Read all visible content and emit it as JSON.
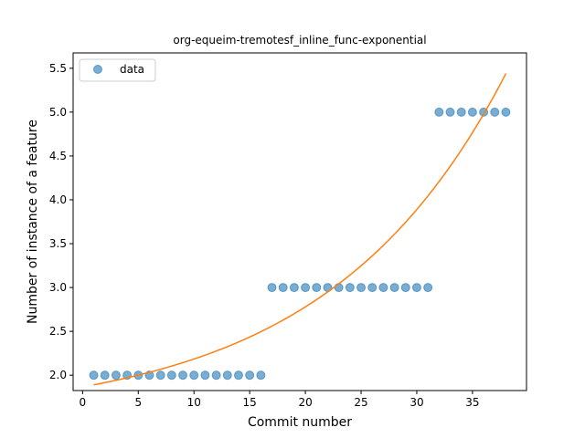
{
  "chart_data": {
    "type": "scatter",
    "title": "org-equeim-tremotesf_inline_func-exponential",
    "xlabel": "Commit number",
    "ylabel": "Number of instance of a feature",
    "xlim": [
      -0.85,
      39.85
    ],
    "ylim": [
      1.825,
      5.675
    ],
    "xticks": [
      0,
      5,
      10,
      15,
      20,
      25,
      30,
      35
    ],
    "yticks": [
      2.0,
      2.5,
      3.0,
      3.5,
      4.0,
      4.5,
      5.0,
      5.5
    ],
    "xtick_labels": [
      "0",
      "5",
      "10",
      "15",
      "20",
      "25",
      "30",
      "35"
    ],
    "ytick_labels": [
      "2.0",
      "2.5",
      "3.0",
      "3.5",
      "4.0",
      "4.5",
      "5.0",
      "5.5"
    ],
    "legend": {
      "position": "upper-left",
      "entries": [
        "data"
      ]
    },
    "grid": false,
    "series": [
      {
        "name": "data",
        "kind": "scatter",
        "color": "#1f77b4",
        "x": [
          1,
          2,
          3,
          4,
          5,
          6,
          7,
          8,
          9,
          10,
          11,
          12,
          13,
          14,
          15,
          16,
          17,
          18,
          19,
          20,
          21,
          22,
          23,
          24,
          25,
          26,
          27,
          28,
          29,
          30,
          31,
          32,
          33,
          34,
          35,
          36,
          37,
          38
        ],
        "y": [
          2,
          2,
          2,
          2,
          2,
          2,
          2,
          2,
          2,
          2,
          2,
          2,
          2,
          2,
          2,
          2,
          3,
          3,
          3,
          3,
          3,
          3,
          3,
          3,
          3,
          3,
          3,
          3,
          3,
          3,
          3,
          5,
          5,
          5,
          5,
          5,
          5,
          5
        ]
      },
      {
        "kind": "line",
        "color": "#ff7f0e",
        "x": [
          1,
          5,
          10,
          15,
          20,
          25,
          30,
          35,
          38
        ],
        "y": [
          1.89,
          1.99,
          2.14,
          2.36,
          2.66,
          3.1,
          3.74,
          4.68,
          5.44
        ]
      }
    ]
  }
}
